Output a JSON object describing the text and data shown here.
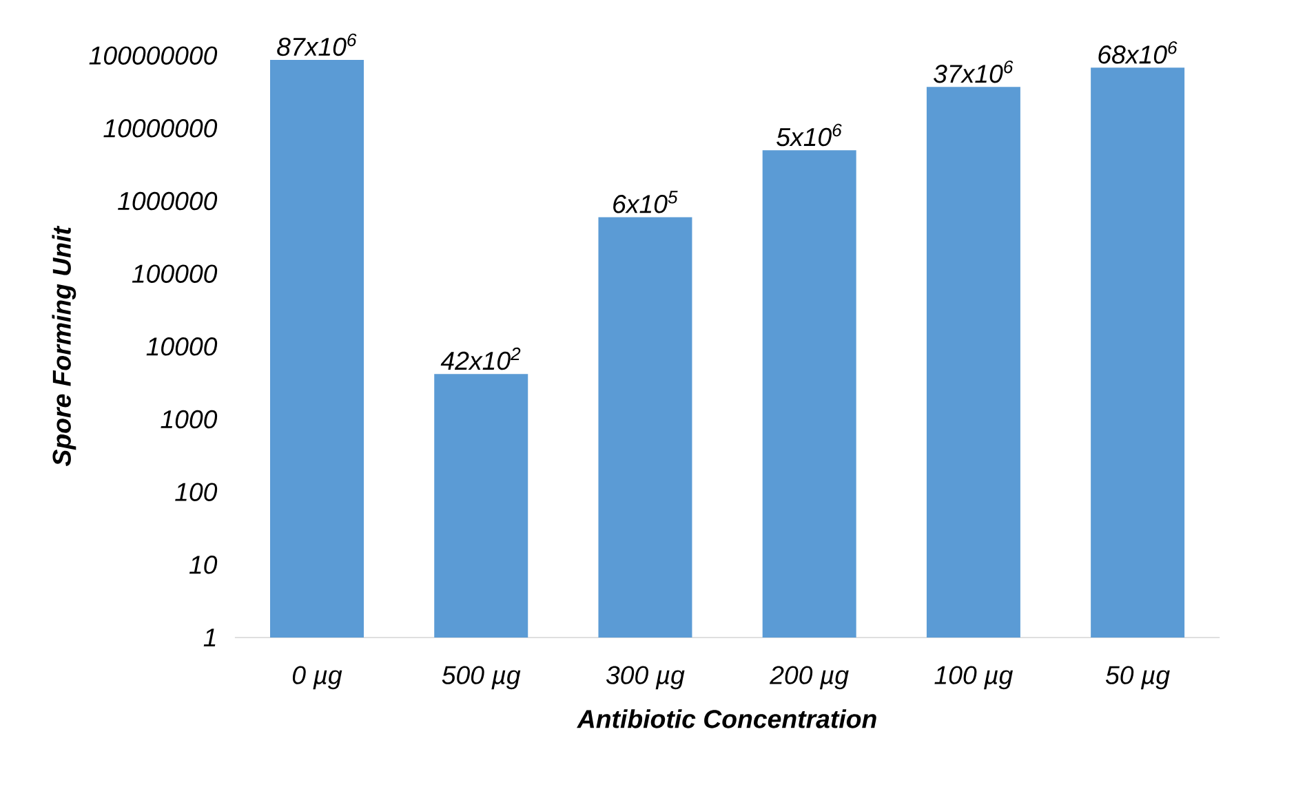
{
  "chart_data": {
    "type": "bar",
    "xlabel": "Antibiotic Concentration",
    "ylabel": "Spore Forming Unit",
    "categories": [
      "0 µg",
      "500 µg",
      "300 µg",
      "200 µg",
      "100 µg",
      "50 µg"
    ],
    "values": [
      87000000,
      4200,
      600000,
      5000000,
      37000000,
      68000000
    ],
    "value_labels": [
      "87x10$^{6}$",
      "42x10$^{2}$",
      "6x10$^{5}$",
      "5x10$^{6}$",
      "37x10$^{6}$",
      "68x10$^{6}$"
    ],
    "color": "#5b9bd5",
    "log": "y",
    "ylim": [
      1,
      100000000
    ],
    "yticks": [
      1,
      10,
      100,
      1000,
      10000,
      100000,
      1000000,
      10000000,
      100000000
    ]
  }
}
